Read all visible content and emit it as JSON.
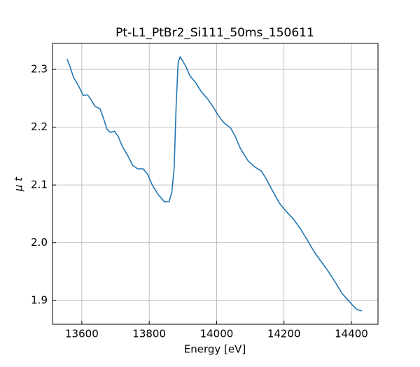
{
  "chart_data": {
    "type": "line",
    "title": "Pt-L1_PtBr2_Si111_50ms_150611",
    "xlabel": "Energy [eV]",
    "ylabel": "μ t",
    "x": [
      13556,
      13565,
      13575,
      13590,
      13604,
      13617,
      13627,
      13639,
      13654,
      13664,
      13675,
      13685,
      13697,
      13708,
      13720,
      13739,
      13751,
      13766,
      13782,
      13795,
      13809,
      13826,
      13845,
      13859,
      13867,
      13874,
      13880,
      13886,
      13892,
      13907,
      13921,
      13938,
      13954,
      13973,
      13990,
      14004,
      14021,
      14041,
      14054,
      14070,
      14093,
      14114,
      14133,
      14147,
      14166,
      14187,
      14207,
      14228,
      14249,
      14270,
      14290,
      14311,
      14332,
      14352,
      14373,
      14394,
      14415,
      14431
    ],
    "series": [
      {
        "color": "#1f77b4",
        "values": [
          2.318,
          2.305,
          2.287,
          2.272,
          2.255,
          2.256,
          2.248,
          2.236,
          2.232,
          2.216,
          2.196,
          2.191,
          2.193,
          2.184,
          2.167,
          2.148,
          2.134,
          2.128,
          2.128,
          2.119,
          2.1,
          2.084,
          2.071,
          2.071,
          2.087,
          2.129,
          2.238,
          2.313,
          2.322,
          2.307,
          2.289,
          2.277,
          2.262,
          2.249,
          2.235,
          2.221,
          2.208,
          2.199,
          2.186,
          2.164,
          2.142,
          2.131,
          2.124,
          2.111,
          2.09,
          2.068,
          2.054,
          2.041,
          2.024,
          2.004,
          1.984,
          1.967,
          1.95,
          1.932,
          1.912,
          1.898,
          1.885,
          1.882
        ]
      }
    ],
    "xlim": [
      13513,
      14479
    ],
    "xticks": [
      13600,
      13800,
      14000,
      14200,
      14400
    ],
    "ylim": [
      1.859,
      2.345
    ],
    "yticks": [
      1.9,
      {
        "value": 2,
        "label": "2.0"
      },
      2.1,
      2.2,
      2.3
    ],
    "grid": true
  }
}
